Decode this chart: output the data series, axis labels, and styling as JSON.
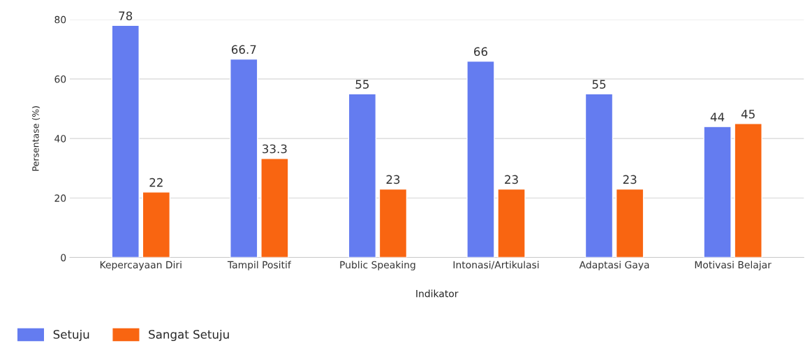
{
  "chart_data": {
    "type": "bar",
    "xlabel": "Indikator",
    "ylabel": "Persentase (%)",
    "categories": [
      "Kepercayaan Diri",
      "Tampil Positif",
      "Public Speaking",
      "Intonasi/Artikulasi",
      "Adaptasi Gaya",
      "Motivasi Belajar"
    ],
    "series": [
      {
        "name": "Setuju",
        "color": "#647cf0",
        "values": [
          78,
          66.7,
          55,
          66,
          55,
          44
        ]
      },
      {
        "name": "Sangat Setuju",
        "color": "#f96511",
        "values": [
          22,
          33.3,
          23,
          23,
          23,
          45
        ]
      }
    ],
    "ylim": [
      0,
      80
    ],
    "yticks": [
      0,
      20,
      40,
      60,
      80
    ],
    "grid": "y",
    "legend": "bottom",
    "data_labels": true
  }
}
